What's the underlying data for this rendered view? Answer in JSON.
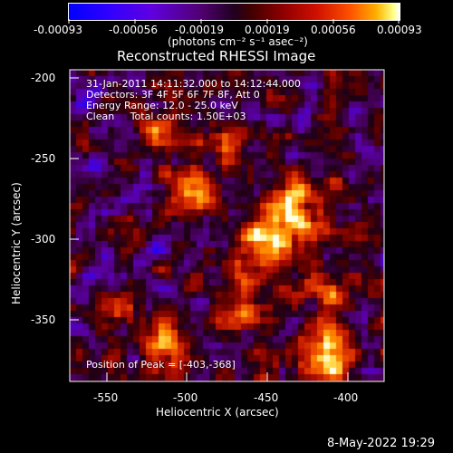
{
  "colorbar": {
    "ticks": [
      "-0.00093",
      "-0.00056",
      "-0.00019",
      "0.00019",
      "0.00056",
      "0.00093"
    ],
    "units": "(photons cm⁻² s⁻¹ asec⁻²)"
  },
  "plot": {
    "title": "Reconstructed RHESSI Image",
    "xlabel": "Heliocentric X (arcsec)",
    "ylabel": "Heliocentric Y (arcsec)",
    "xticks": [
      "-550",
      "-500",
      "-450",
      "-400"
    ],
    "yticks": [
      "-200",
      "-250",
      "-300",
      "-350"
    ]
  },
  "annotations": {
    "time_range": "31-Jan-2011 14:11:32.000 to 14:12:44.000",
    "detectors": "Detectors: 3F 4F 5F 6F 7F 8F, Att 0",
    "energy": "Energy Range: 12.0 - 25.0 keV",
    "clean": "Clean     Total counts: 1.50E+03",
    "peak": "Position of Peak = [-403,-368]"
  },
  "footer": {
    "timestamp": "8-May-2022 19:29"
  },
  "colors": {
    "background": "#000000",
    "text": "#ffffff"
  }
}
